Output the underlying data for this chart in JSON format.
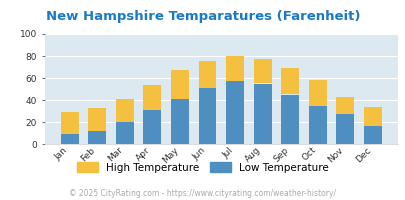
{
  "title": "New Hampshire Temparatures (Farenheit)",
  "months": [
    "Jan",
    "Feb",
    "Mar",
    "Apr",
    "May",
    "Jun",
    "Jul",
    "Aug",
    "Sep",
    "Oct",
    "Nov",
    "Dec"
  ],
  "low_temps": [
    9,
    12,
    20,
    31,
    41,
    51,
    57,
    55,
    45,
    35,
    27,
    16
  ],
  "high_temps": [
    29,
    33,
    41,
    54,
    67,
    75,
    80,
    77,
    69,
    58,
    43,
    34
  ],
  "low_color": "#4e8ec0",
  "high_color": "#f5c040",
  "title_color": "#1a7ac8",
  "bg_color": "#dce9f0",
  "ylim": [
    0,
    100
  ],
  "yticks": [
    0,
    20,
    40,
    60,
    80,
    100
  ],
  "legend_labels": [
    "High Temperature",
    "Low Temperature"
  ],
  "footer": "© 2025 CityRating.com - https://www.cityrating.com/weather-history/",
  "footer_color": "#aaaaaa"
}
